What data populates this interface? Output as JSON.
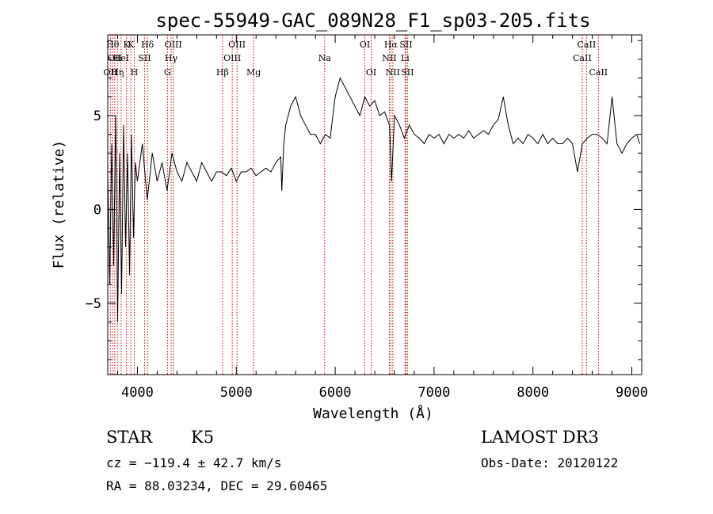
{
  "chart_data": {
    "type": "line",
    "title": "spec-55949-GAC_089N28_F1_sp03-205.fits",
    "xlabel": "Wavelength (Å)",
    "ylabel": "Flux (relative)",
    "xlim": [
      3700,
      9100
    ],
    "ylim": [
      -8.8,
      9.3
    ],
    "x_ticks": [
      4000,
      5000,
      6000,
      7000,
      8000,
      9000
    ],
    "y_ticks": [
      -5,
      0,
      5
    ],
    "grid": false,
    "series": [
      {
        "color": "#000000",
        "x": [
          3700,
          3720,
          3740,
          3760,
          3780,
          3800,
          3820,
          3840,
          3860,
          3880,
          3900,
          3920,
          3940,
          3960,
          3980,
          4000,
          4050,
          4100,
          4150,
          4200,
          4250,
          4300,
          4350,
          4400,
          4450,
          4500,
          4550,
          4600,
          4650,
          4700,
          4750,
          4800,
          4850,
          4900,
          4950,
          5000,
          5050,
          5100,
          5150,
          5200,
          5250,
          5300,
          5350,
          5400,
          5450,
          5460,
          5480,
          5500,
          5550,
          5600,
          5650,
          5700,
          5750,
          5800,
          5850,
          5900,
          5950,
          6000,
          6050,
          6100,
          6150,
          6200,
          6250,
          6300,
          6350,
          6400,
          6450,
          6500,
          6550,
          6570,
          6600,
          6650,
          6700,
          6750,
          6800,
          6850,
          6900,
          6950,
          7000,
          7050,
          7100,
          7150,
          7200,
          7250,
          7300,
          7350,
          7400,
          7450,
          7500,
          7550,
          7600,
          7650,
          7700,
          7750,
          7800,
          7850,
          7900,
          7950,
          8000,
          8050,
          8100,
          8150,
          8200,
          8250,
          8300,
          8350,
          8400,
          8450,
          8500,
          8550,
          8600,
          8650,
          8700,
          8750,
          8800,
          8850,
          8900,
          8950,
          9000,
          9050,
          9080
        ],
        "y": [
          2.0,
          -4.0,
          3.5,
          -3.0,
          5.0,
          -6.0,
          3.0,
          -4.5,
          4.5,
          -2.0,
          3.0,
          -3.5,
          4.0,
          -1.5,
          2.5,
          1.5,
          3.5,
          0.5,
          3.0,
          1.5,
          2.5,
          1.0,
          3.0,
          2.0,
          1.5,
          2.5,
          2.0,
          1.5,
          2.5,
          2.0,
          1.5,
          2.0,
          2.0,
          1.8,
          2.2,
          1.5,
          2.0,
          2.0,
          2.2,
          1.8,
          2.0,
          2.2,
          2.0,
          2.5,
          2.8,
          1.0,
          3.5,
          4.5,
          5.5,
          6.0,
          5.0,
          4.5,
          4.0,
          4.0,
          3.5,
          4.0,
          3.8,
          6.0,
          7.0,
          6.5,
          6.0,
          5.5,
          5.0,
          6.0,
          5.5,
          5.8,
          5.0,
          5.2,
          4.5,
          1.5,
          5.0,
          4.5,
          3.8,
          4.5,
          4.0,
          3.8,
          3.5,
          4.0,
          3.8,
          4.0,
          3.5,
          4.0,
          3.8,
          4.0,
          3.8,
          4.2,
          3.8,
          4.0,
          4.2,
          4.0,
          4.5,
          4.8,
          6.0,
          4.5,
          3.5,
          3.8,
          3.5,
          4.0,
          3.8,
          3.5,
          4.0,
          3.5,
          3.8,
          3.5,
          3.5,
          3.8,
          3.5,
          2.0,
          3.5,
          3.8,
          4.0,
          4.0,
          3.8,
          3.5,
          6.0,
          3.5,
          3.0,
          3.5,
          3.8,
          4.0,
          3.5
        ]
      }
    ],
    "lines": [
      {
        "x": 3727,
        "row": 2,
        "text": "OII"
      },
      {
        "x": 3750,
        "row": 0,
        "text": "Hθ"
      },
      {
        "x": 3771,
        "row": 1,
        "text": "OII"
      },
      {
        "x": 3798,
        "row": 2,
        "text": "Hη"
      },
      {
        "x": 3835,
        "row": 1,
        "text": "HeI"
      },
      {
        "x": 3889,
        "row": 0,
        "text": "K"
      },
      {
        "x": 3934,
        "row": 0,
        "text": "K"
      },
      {
        "x": 3969,
        "row": 2,
        "text": "H"
      },
      {
        "x": 4072,
        "row": 1,
        "text": "SII"
      },
      {
        "x": 4102,
        "row": 0,
        "text": "Hδ"
      },
      {
        "x": 4304,
        "row": 2,
        "text": "G"
      },
      {
        "x": 4341,
        "row": 1,
        "text": "Hγ"
      },
      {
        "x": 4363,
        "row": 0,
        "text": "OIII"
      },
      {
        "x": 4861,
        "row": 2,
        "text": "Hβ"
      },
      {
        "x": 4959,
        "row": 1,
        "text": "OIII"
      },
      {
        "x": 5007,
        "row": 0,
        "text": "OIII"
      },
      {
        "x": 5175,
        "row": 2,
        "text": "Mg"
      },
      {
        "x": 5894,
        "row": 1,
        "text": "Na"
      },
      {
        "x": 6300,
        "row": 0,
        "text": "OI"
      },
      {
        "x": 6364,
        "row": 2,
        "text": "OI"
      },
      {
        "x": 6548,
        "row": 1,
        "text": "NII"
      },
      {
        "x": 6563,
        "row": 0,
        "text": "Hα"
      },
      {
        "x": 6583,
        "row": 2,
        "text": "NII"
      },
      {
        "x": 6707,
        "row": 1,
        "text": "Li"
      },
      {
        "x": 6716,
        "row": 0,
        "text": "SII"
      },
      {
        "x": 6731,
        "row": 2,
        "text": "SII"
      },
      {
        "x": 8498,
        "row": 1,
        "text": "CaII"
      },
      {
        "x": 8542,
        "row": 0,
        "text": "CaII"
      },
      {
        "x": 8662,
        "row": 2,
        "text": "CaII"
      }
    ]
  },
  "info": {
    "class": "STAR",
    "subclass": "K5",
    "survey": "LAMOST DR3",
    "cz": "cz = −119.4 ± 42.7 km/s",
    "obs_date": "Obs-Date: 20120122",
    "coords": "RA =  88.03234, DEC =  29.60465"
  }
}
